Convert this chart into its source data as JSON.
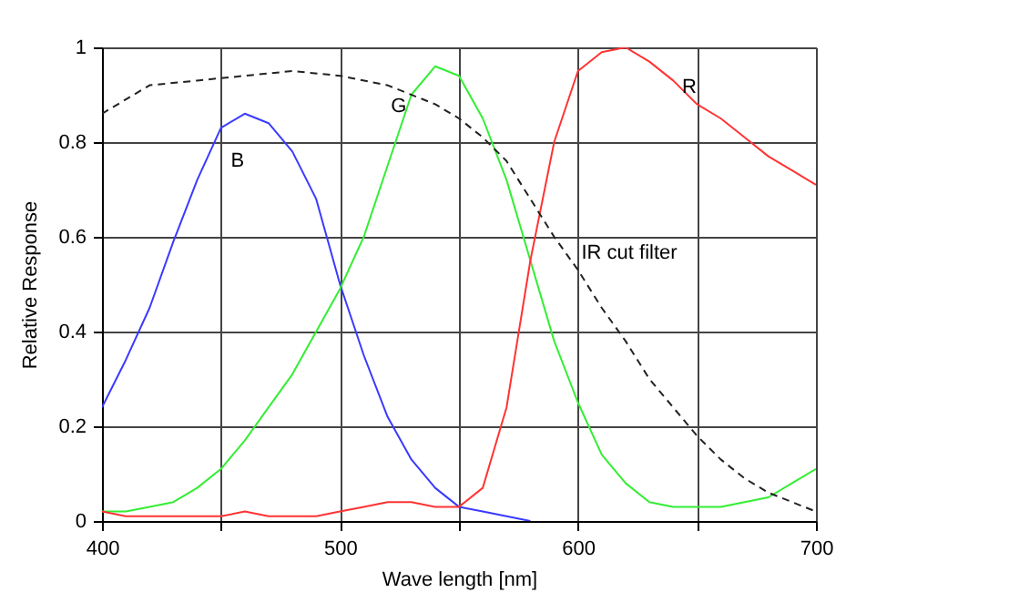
{
  "chart_data": {
    "type": "line",
    "xlabel": "Wave length [nm]",
    "ylabel": "Relative Response",
    "xlim": [
      400,
      700
    ],
    "ylim": [
      0,
      1
    ],
    "xticks": [
      400,
      {
        "value": 450,
        "label": null
      },
      500,
      {
        "value": 550,
        "label": null
      },
      600,
      {
        "value": 650,
        "label": null
      },
      700
    ],
    "yticks": [
      0,
      0.2,
      0.4,
      0.6,
      0.8,
      1
    ],
    "grid": true,
    "marker": "none",
    "series": [
      {
        "name": "B",
        "color": "#3a3aff",
        "line_style": "solid",
        "x": [
          400,
          410,
          420,
          430,
          440,
          450,
          460,
          470,
          480,
          490,
          500,
          510,
          520,
          530,
          540,
          550,
          560,
          570,
          580
        ],
        "values": [
          0.24,
          0.34,
          0.45,
          0.59,
          0.72,
          0.83,
          0.86,
          0.84,
          0.78,
          0.68,
          0.5,
          0.35,
          0.22,
          0.13,
          0.07,
          0.03,
          0.02,
          0.01,
          0.0
        ]
      },
      {
        "name": "G",
        "color": "#33ee33",
        "line_style": "solid",
        "x": [
          400,
          410,
          420,
          430,
          440,
          450,
          460,
          470,
          480,
          490,
          500,
          510,
          520,
          530,
          540,
          550,
          560,
          570,
          580,
          590,
          600,
          610,
          620,
          630,
          640,
          650,
          660,
          670,
          680,
          690,
          700
        ],
        "values": [
          0.02,
          0.02,
          0.03,
          0.04,
          0.07,
          0.11,
          0.17,
          0.24,
          0.31,
          0.4,
          0.49,
          0.6,
          0.75,
          0.9,
          0.96,
          0.94,
          0.85,
          0.72,
          0.55,
          0.38,
          0.25,
          0.14,
          0.08,
          0.04,
          0.03,
          0.03,
          0.03,
          0.04,
          0.05,
          0.08,
          0.11
        ]
      },
      {
        "name": "R",
        "color": "#ff3333",
        "line_style": "solid",
        "x": [
          400,
          410,
          420,
          430,
          440,
          450,
          460,
          470,
          480,
          490,
          500,
          510,
          520,
          530,
          540,
          550,
          560,
          570,
          580,
          590,
          600,
          610,
          620,
          630,
          640,
          650,
          660,
          670,
          680,
          690,
          700
        ],
        "values": [
          0.02,
          0.01,
          0.01,
          0.01,
          0.01,
          0.01,
          0.02,
          0.01,
          0.01,
          0.01,
          0.02,
          0.03,
          0.04,
          0.04,
          0.03,
          0.03,
          0.07,
          0.24,
          0.55,
          0.8,
          0.95,
          0.99,
          1.0,
          0.97,
          0.93,
          0.88,
          0.85,
          0.81,
          0.77,
          0.74,
          0.71
        ]
      },
      {
        "name": "IR cut filter",
        "color": "#222222",
        "line_style": "dashed",
        "x": [
          400,
          410,
          420,
          440,
          460,
          480,
          500,
          520,
          540,
          550,
          560,
          570,
          580,
          590,
          600,
          610,
          620,
          630,
          640,
          650,
          660,
          670,
          680,
          690,
          700
        ],
        "values": [
          0.86,
          0.89,
          0.92,
          0.93,
          0.94,
          0.95,
          0.94,
          0.92,
          0.88,
          0.85,
          0.81,
          0.76,
          0.68,
          0.6,
          0.53,
          0.45,
          0.38,
          0.3,
          0.24,
          0.18,
          0.13,
          0.09,
          0.06,
          0.04,
          0.02
        ]
      }
    ]
  }
}
